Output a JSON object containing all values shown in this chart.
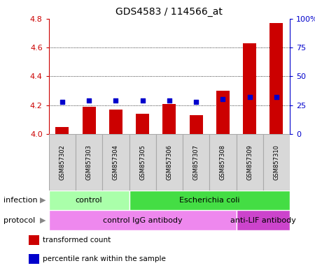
{
  "title": "GDS4583 / 114566_at",
  "samples": [
    "GSM857302",
    "GSM857303",
    "GSM857304",
    "GSM857305",
    "GSM857306",
    "GSM857307",
    "GSM857308",
    "GSM857309",
    "GSM857310"
  ],
  "transformed_counts": [
    4.05,
    4.19,
    4.17,
    4.14,
    4.21,
    4.13,
    4.3,
    4.63,
    4.77
  ],
  "percentile_ranks": [
    28,
    29,
    29,
    29,
    29,
    28,
    30,
    32,
    32
  ],
  "ylim_left": [
    4.0,
    4.8
  ],
  "ylim_right": [
    0,
    100
  ],
  "yticks_left": [
    4.0,
    4.2,
    4.4,
    4.6,
    4.8
  ],
  "yticks_right": [
    0,
    25,
    50,
    75,
    100
  ],
  "ytick_labels_right": [
    "0",
    "25",
    "50",
    "75",
    "100%"
  ],
  "bar_color": "#cc0000",
  "dot_color": "#0000cc",
  "bar_width": 0.5,
  "infection_labels": [
    {
      "text": "control",
      "start": 0,
      "end": 3,
      "color": "#aaffaa"
    },
    {
      "text": "Escherichia coli",
      "start": 3,
      "end": 9,
      "color": "#44dd44"
    }
  ],
  "protocol_labels": [
    {
      "text": "control IgG antibody",
      "start": 0,
      "end": 7,
      "color": "#ee88ee"
    },
    {
      "text": "anti-LIF antibody",
      "start": 7,
      "end": 9,
      "color": "#cc44cc"
    }
  ],
  "legend_items": [
    {
      "color": "#cc0000",
      "label": "transformed count"
    },
    {
      "color": "#0000cc",
      "label": "percentile rank within the sample"
    }
  ],
  "tick_color_left": "#cc0000",
  "tick_color_right": "#0000cc",
  "sample_box_color": "#d8d8d8",
  "sample_box_edge": "#aaaaaa",
  "dotgrid_color": "black",
  "left_label_color": "#888888",
  "arrow_color": "#888888"
}
